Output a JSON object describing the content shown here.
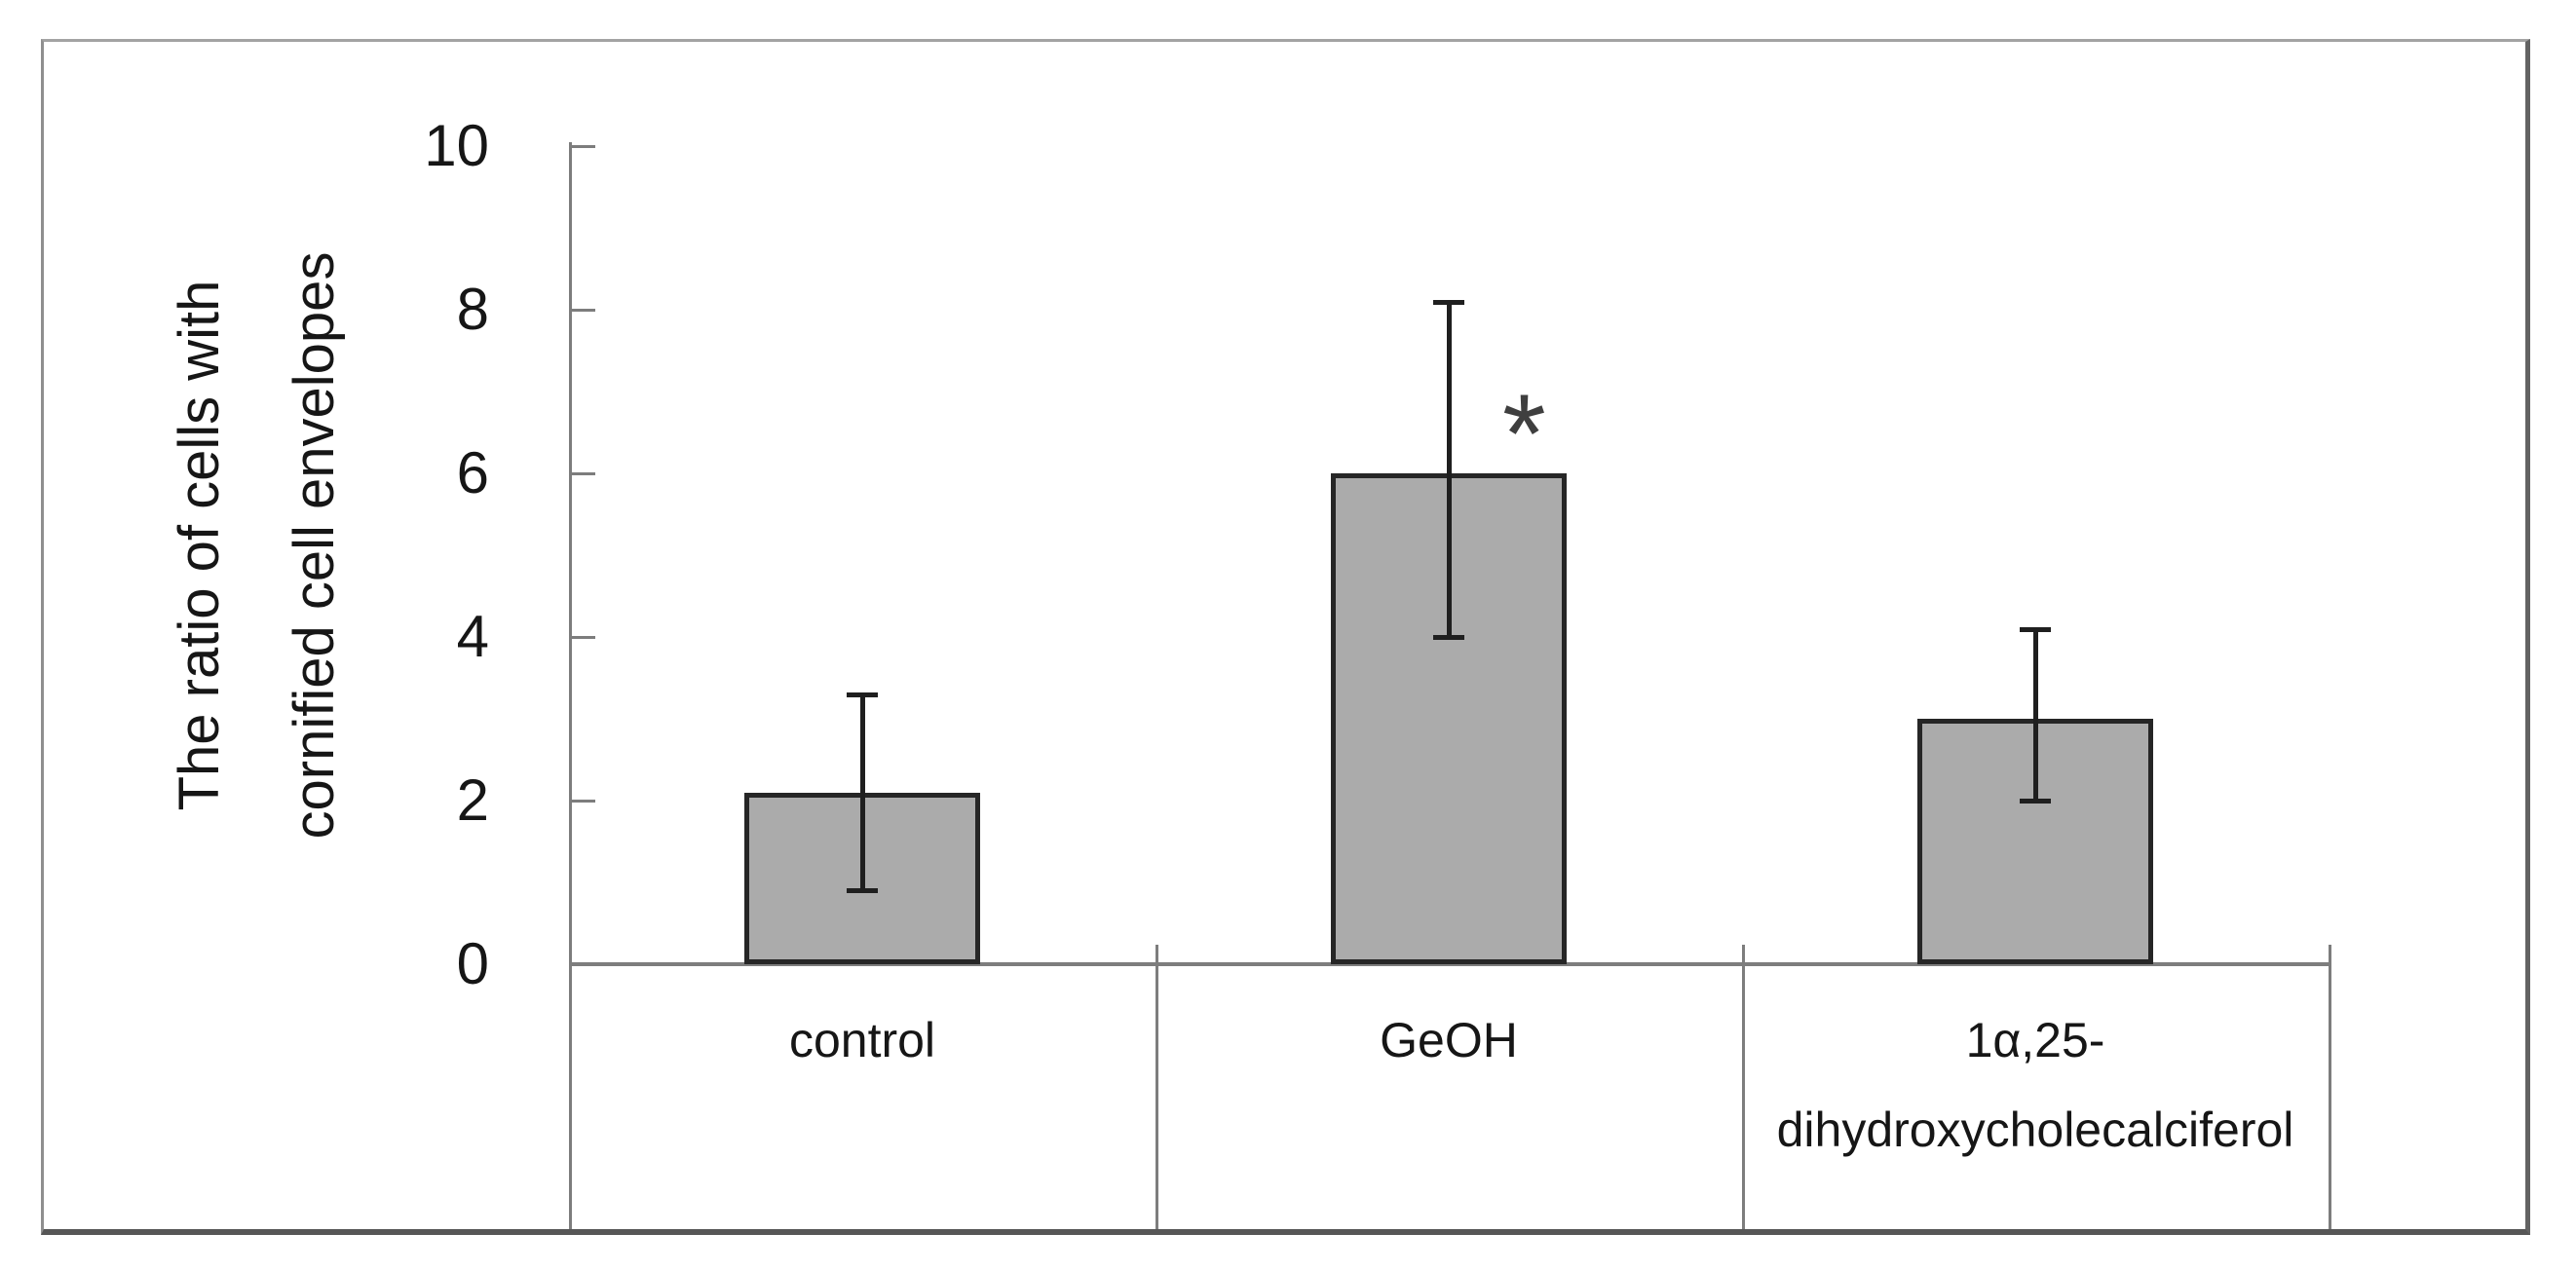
{
  "figure": {
    "y_axis": {
      "title": "The ratio of cells with cornified cell envelopes",
      "title_line1": "The ratio of cells with",
      "title_line2": "cornified cell envelopes",
      "tick_labels": [
        "0",
        "2",
        "4",
        "6",
        "8",
        "10"
      ]
    },
    "x_axis": {
      "category_labels": [
        "control",
        "GeOH",
        "1α,25-dihydroxycholecalciferol"
      ]
    },
    "annotation": {
      "significance_marker": "*",
      "marked_category": "GeOH"
    },
    "colors": {
      "bar_fill": "#ababab",
      "bar_border": "#262626",
      "axis_line": "#7d7d7d",
      "error_bar": "#1f1f1f",
      "text": "#161616",
      "background": "#ffffff"
    }
  },
  "chart_data": {
    "type": "bar",
    "title": "",
    "xlabel": "",
    "ylabel": "The ratio of cells with cornified cell envelopes",
    "ylim": [
      0,
      10
    ],
    "yticks": [
      0,
      2,
      4,
      6,
      8,
      10
    ],
    "grid": false,
    "legend": null,
    "categories": [
      "control",
      "GeOH",
      "1α,25-dihydroxycholecalciferol"
    ],
    "category_label_lines": [
      [
        "control"
      ],
      [
        "GeOH"
      ],
      [
        "1α,25-",
        "dihydroxycholecalciferol"
      ]
    ],
    "values": [
      2.1,
      6.0,
      3.0
    ],
    "error_bars": {
      "upper_whisker": [
        3.3,
        8.1,
        4.1
      ],
      "lower_whisker": [
        0.9,
        4.0,
        2.0
      ]
    },
    "significance": [
      null,
      "*",
      null
    ]
  }
}
